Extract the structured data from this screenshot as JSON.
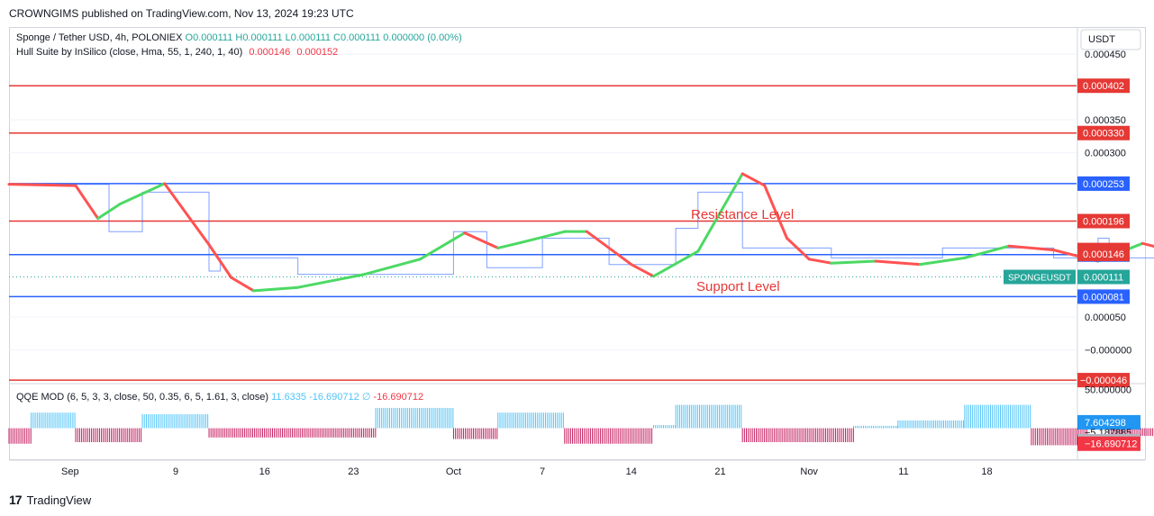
{
  "header": {
    "publisher_line": "CROWNGIMS published on TradingView.com, Nov 13, 2024 19:23 UTC"
  },
  "legend": {
    "symbol_text": "Sponge / Tether USD, 4h, POLONIEX",
    "ohlc_text": "O0.000111  H0.000111  L0.000111  C0.000111  0.000000 (0.00%)",
    "indicator_name": "Hull Suite by InSilico (close, Hma, 55, 1, 240, 1, 40)",
    "indicator_val1": "0.000146",
    "indicator_val2": "0.000152",
    "qqe_name": "QQE MOD (6, 5, 3, 3, close, 50, 0.35, 6, 5, 1.61, 3, close)",
    "qqe_vals": "11.6335  -16.690712  ∅",
    "qqe_val_red": "-16.690712"
  },
  "footer": {
    "brand": "TradingView"
  },
  "colors": {
    "up": "#4cd964",
    "down": "#ff5252",
    "blue_level": "#2962ff",
    "red_level": "#e53935",
    "qqe_up": "#4fc3f7",
    "qqe_down": "#c2185b",
    "price_tag": "#26a69a"
  },
  "chart_data": {
    "type": "line",
    "title": "Sponge / Tether USD, 4h, POLONIEX",
    "currency_label": "USDT",
    "x_ticks": [
      "Sep",
      "9",
      "16",
      "23",
      "Oct",
      "7",
      "14",
      "21",
      "Nov",
      "11",
      "18"
    ],
    "y_ticks": [
      "0.000450",
      "0.000350",
      "0.000300",
      "0.000050",
      "−0.000000"
    ],
    "ylim": [
      -5e-05,
      0.00049
    ],
    "annotations": {
      "resistance": "Resistance Level",
      "support": "Support Level"
    },
    "horizontal_levels": [
      {
        "value": 0.000402,
        "label": "0.000402",
        "color": "red"
      },
      {
        "value": 0.00033,
        "label": "0.000330",
        "color": "red"
      },
      {
        "value": 0.000253,
        "label": "0.000253",
        "color": "blue"
      },
      {
        "value": 0.000196,
        "label": "0.000196",
        "color": "red"
      },
      {
        "value": 0.000145,
        "label": "0.000145",
        "color": "blue"
      },
      {
        "value": 8.1e-05,
        "label": "0.000081",
        "color": "blue"
      },
      {
        "value": -4.6e-05,
        "label": "−0.000046",
        "color": "red"
      }
    ],
    "price_tags": [
      {
        "value": 0.000152,
        "label": "0.000152",
        "color": "red"
      },
      {
        "value": 0.000146,
        "label": "0.000146",
        "color": "red"
      },
      {
        "value": 0.000111,
        "label": "0.000111",
        "color": "teal"
      }
    ],
    "symbol_tag": "SPONGEUSDT",
    "hull_series": {
      "name": "Hull Suite",
      "points": [
        [
          0,
          0.000252
        ],
        [
          6,
          0.00025
        ],
        [
          8,
          0.0002
        ],
        [
          10,
          0.000222
        ],
        [
          14,
          0.000253
        ],
        [
          18,
          0.00016
        ],
        [
          20,
          0.00011
        ],
        [
          22,
          9e-05
        ],
        [
          26,
          9.5e-05
        ],
        [
          32,
          0.000115
        ],
        [
          37,
          0.000138
        ],
        [
          41,
          0.000178
        ],
        [
          44,
          0.000155
        ],
        [
          46,
          0.000163
        ],
        [
          50,
          0.00018
        ],
        [
          52,
          0.00018
        ],
        [
          56,
          0.00013
        ],
        [
          58,
          0.000112
        ],
        [
          62,
          0.00015
        ],
        [
          66,
          0.000268
        ],
        [
          68,
          0.00025
        ],
        [
          70,
          0.00017
        ],
        [
          72,
          0.000138
        ],
        [
          74,
          0.000132
        ],
        [
          78,
          0.000135
        ],
        [
          82,
          0.00013
        ],
        [
          86,
          0.00014
        ],
        [
          90,
          0.000158
        ],
        [
          94,
          0.000152
        ],
        [
          98,
          0.000135
        ],
        [
          102,
          0.000162
        ],
        [
          106,
          0.000145
        ],
        [
          110,
          0.000135
        ],
        [
          112,
          0.000155
        ],
        [
          114,
          0.000146
        ]
      ]
    },
    "price_steps": [
      [
        0,
        0.000252
      ],
      [
        9,
        0.000252
      ],
      [
        9,
        0.00018
      ],
      [
        12,
        0.00018
      ],
      [
        12,
        0.00024
      ],
      [
        18,
        0.00024
      ],
      [
        18,
        0.00012
      ],
      [
        19,
        0.00012
      ],
      [
        19,
        0.00014
      ],
      [
        26,
        0.00014
      ],
      [
        26,
        0.000115
      ],
      [
        40,
        0.000115
      ],
      [
        40,
        0.00018
      ],
      [
        43,
        0.00018
      ],
      [
        43,
        0.000125
      ],
      [
        48,
        0.000125
      ],
      [
        48,
        0.00017
      ],
      [
        54,
        0.00017
      ],
      [
        54,
        0.00013
      ],
      [
        60,
        0.00013
      ],
      [
        60,
        0.000185
      ],
      [
        62,
        0.000185
      ],
      [
        62,
        0.00024
      ],
      [
        66,
        0.00024
      ],
      [
        66,
        0.000155
      ],
      [
        74,
        0.000155
      ],
      [
        74,
        0.00014
      ],
      [
        84,
        0.00014
      ],
      [
        84,
        0.000155
      ],
      [
        94,
        0.000155
      ],
      [
        94,
        0.00014
      ],
      [
        98,
        0.00014
      ],
      [
        98,
        0.00017
      ],
      [
        99,
        0.00017
      ],
      [
        99,
        0.00014
      ],
      [
        108,
        0.00014
      ],
      [
        108,
        0.00016
      ],
      [
        110,
        0.00016
      ],
      [
        110,
        0.00017
      ],
      [
        112,
        0.00017
      ],
      [
        112,
        0.00012
      ],
      [
        114,
        0.000111
      ]
    ],
    "qqe_axis_labels": [
      {
        "label": "50.000000",
        "color": "none"
      },
      {
        "label": "7.604298",
        "color": "blue"
      },
      {
        "label": "−5.187885",
        "color": "none"
      },
      {
        "label": "−16.690712",
        "color": "gray"
      },
      {
        "label": "−16.690712",
        "color": "red"
      }
    ],
    "qqe_ylim": [
      -40,
      55
    ],
    "qqe_histogram": [
      {
        "from": 0,
        "to": 2,
        "value": -20
      },
      {
        "from": 2,
        "to": 6,
        "value": 20
      },
      {
        "from": 6,
        "to": 12,
        "value": -18
      },
      {
        "from": 12,
        "to": 18,
        "value": 18
      },
      {
        "from": 18,
        "to": 33,
        "value": -12
      },
      {
        "from": 33,
        "to": 40,
        "value": 26
      },
      {
        "from": 40,
        "to": 44,
        "value": -14
      },
      {
        "from": 44,
        "to": 50,
        "value": 20
      },
      {
        "from": 50,
        "to": 58,
        "value": -20
      },
      {
        "from": 58,
        "to": 60,
        "value": 4
      },
      {
        "from": 60,
        "to": 66,
        "value": 30
      },
      {
        "from": 66,
        "to": 76,
        "value": -18
      },
      {
        "from": 76,
        "to": 80,
        "value": 3
      },
      {
        "from": 80,
        "to": 86,
        "value": 10
      },
      {
        "from": 86,
        "to": 92,
        "value": 30
      },
      {
        "from": 92,
        "to": 97,
        "value": -22
      },
      {
        "from": 97,
        "to": 99,
        "value": 10
      },
      {
        "from": 99,
        "to": 107,
        "value": -10
      },
      {
        "from": 107,
        "to": 111,
        "value": 4
      },
      {
        "from": 111,
        "to": 112,
        "value": 22
      },
      {
        "from": 112,
        "to": 114,
        "value": -8
      }
    ]
  }
}
